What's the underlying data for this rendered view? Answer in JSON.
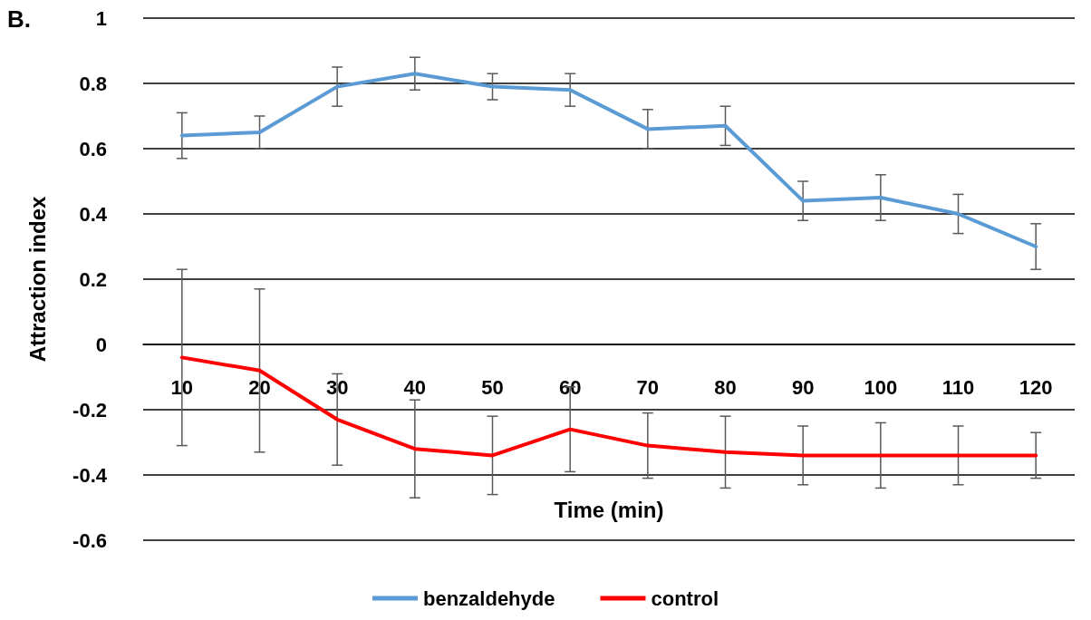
{
  "chart_data": {
    "type": "line",
    "xlabel": "Time (min)",
    "ylabel": "Attraction index",
    "annotations": [
      "B."
    ],
    "categories": [
      "10",
      "20",
      "30",
      "40",
      "50",
      "60",
      "70",
      "80",
      "90",
      "100",
      "110",
      "120"
    ],
    "series": [
      {
        "name": "benzaldehyde",
        "color": "#5b9bd5",
        "values": [
          0.64,
          0.65,
          0.79,
          0.83,
          0.79,
          0.78,
          0.66,
          0.67,
          0.44,
          0.45,
          0.4,
          0.3
        ],
        "errors": [
          0.07,
          0.05,
          0.06,
          0.05,
          0.04,
          0.05,
          0.06,
          0.06,
          0.06,
          0.07,
          0.06,
          0.07
        ]
      },
      {
        "name": "control",
        "color": "#ff0000",
        "values": [
          -0.04,
          -0.08,
          -0.23,
          -0.32,
          -0.34,
          -0.26,
          -0.31,
          -0.33,
          -0.34,
          -0.34,
          -0.34,
          -0.34
        ],
        "errors": [
          0.27,
          0.25,
          0.14,
          0.15,
          0.12,
          0.13,
          0.1,
          0.11,
          0.09,
          0.1,
          0.09,
          0.07
        ]
      }
    ],
    "ylim": [
      -0.6,
      1
    ],
    "yticks": [
      -0.6,
      -0.4,
      -0.2,
      0,
      0.2,
      0.4,
      0.6,
      0.8,
      1
    ],
    "grid": "y",
    "legend": "bottom",
    "marker": "none",
    "line_style": "solid"
  }
}
